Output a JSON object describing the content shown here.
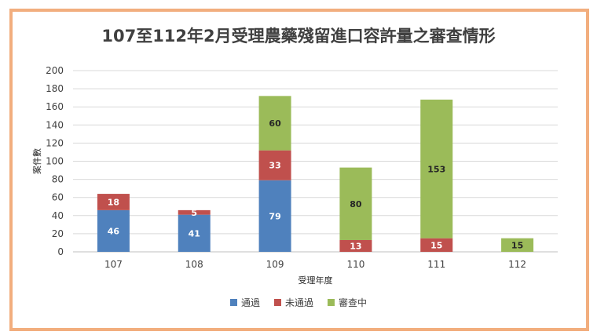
{
  "chart_data": {
    "type": "bar",
    "stacked": true,
    "title": "107至112年2月受理農藥殘留進口容許量之審查情形",
    "xlabel": "受理年度",
    "ylabel": "案件數",
    "categories": [
      "107",
      "108",
      "109",
      "110",
      "111",
      "112"
    ],
    "ylim": [
      0,
      200
    ],
    "yticks": [
      0,
      20,
      40,
      60,
      80,
      100,
      120,
      140,
      160,
      180,
      200
    ],
    "grid": true,
    "legend_position": "bottom",
    "series": [
      {
        "name": "通過",
        "color": "#4f81bd",
        "label_color": "#ffffff",
        "values": [
          46,
          41,
          79,
          null,
          null,
          null
        ]
      },
      {
        "name": "未通過",
        "color": "#c0504d",
        "label_color": "#ffffff",
        "values": [
          18,
          5,
          33,
          13,
          15,
          null
        ]
      },
      {
        "name": "審查中",
        "color": "#9bbb59",
        "label_color": "#262626",
        "values": [
          null,
          null,
          60,
          80,
          153,
          15
        ]
      }
    ]
  }
}
